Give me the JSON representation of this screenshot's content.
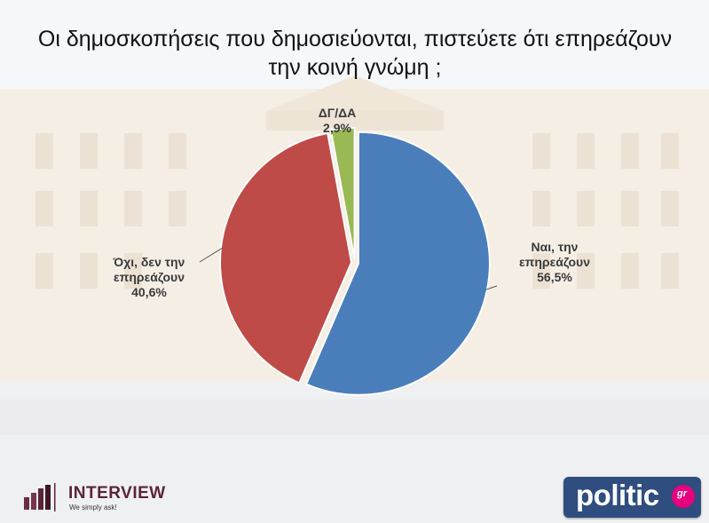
{
  "title_line1": "Οι δημοσκοπήσεις που δημοσιεύονται, πιστεύετε ότι επηρεάζουν",
  "title_line2": "την κοινή γνώμη ;",
  "chart_data": {
    "type": "pie",
    "title": "Οι δημοσκοπήσεις που δημοσιεύονται, πιστεύετε ότι επηρεάζουν την κοινή γνώμη ;",
    "slices": [
      {
        "label_lines": [
          "Ναι, την",
          "επηρεάζουν"
        ],
        "value": 56.5,
        "value_text": "56,5%",
        "color": "#4a7ebb"
      },
      {
        "label_lines": [
          "Όχι, δεν την",
          "επηρεάζουν"
        ],
        "value": 40.6,
        "value_text": "40,6%",
        "color": "#be4b48"
      },
      {
        "label_lines": [
          "ΔΓ/ΔΑ"
        ],
        "value": 2.9,
        "value_text": "2,9%",
        "color": "#98b954"
      }
    ],
    "start": "12 o'clock",
    "direction": "clockwise",
    "exploded": true
  },
  "logos": {
    "interview_name": "INTERVIEW",
    "interview_tagline": "We simply ask!",
    "politic_name": "politic",
    "politic_badge": "gr"
  },
  "colors": {
    "interview_brand": "#5a2439",
    "politic_bg": "#2f4d7e",
    "politic_badge": "#e5007e"
  }
}
